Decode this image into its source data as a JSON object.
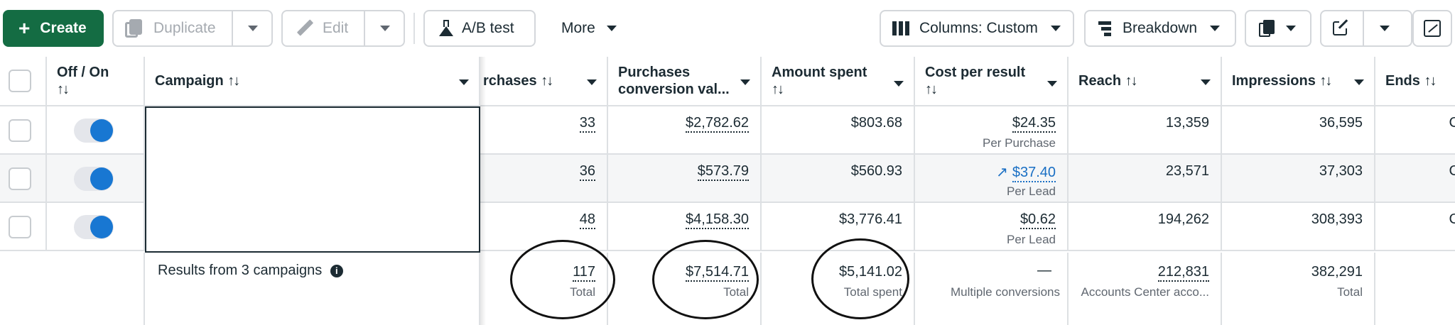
{
  "toolbar": {
    "create": "Create",
    "duplicate": "Duplicate",
    "edit": "Edit",
    "ab_test": "A/B test",
    "more": "More",
    "columns": "Columns: Custom",
    "breakdown": "Breakdown"
  },
  "columns": {
    "off_on": "Off / On",
    "campaign": "Campaign",
    "purchases": "rchases",
    "purchases_conv_1": "Purchases",
    "purchases_conv_2": "conversion val...",
    "amount_spent": "Amount spent",
    "cost_per_result": "Cost per result",
    "reach": "Reach",
    "impressions": "Impressions",
    "ends": "Ends"
  },
  "rows": [
    {
      "purchases": "33",
      "conv_value": "$2,782.62",
      "amount_spent": "$803.68",
      "cost": "$24.35",
      "cost_sub": "Per Purchase",
      "reach": "13,359",
      "impressions": "36,595",
      "ends": "C"
    },
    {
      "purchases": "36",
      "conv_value": "$573.79",
      "amount_spent": "$560.93",
      "cost": "$37.40",
      "cost_sub": "Per Lead",
      "reach": "23,571",
      "impressions": "37,303",
      "ends": "C"
    },
    {
      "purchases": "48",
      "conv_value": "$4,158.30",
      "amount_spent": "$3,776.41",
      "cost": "$0.62",
      "cost_sub": "Per Lead",
      "reach": "194,262",
      "impressions": "308,393",
      "ends": "C"
    }
  ],
  "summary": {
    "label": "Results from 3 campaigns",
    "purchases": "117",
    "purchases_sub": "Total",
    "conv_value": "$7,514.71",
    "conv_value_sub": "Total",
    "amount_spent": "$5,141.02",
    "amount_spent_sub": "Total spent",
    "cost": "—",
    "cost_sub": "Multiple conversions",
    "reach": "212,831",
    "reach_sub": "Accounts Center acco...",
    "impressions": "382,291",
    "impressions_sub": "Total"
  },
  "colors": {
    "accent": "#1877d2",
    "create": "#146c43"
  }
}
